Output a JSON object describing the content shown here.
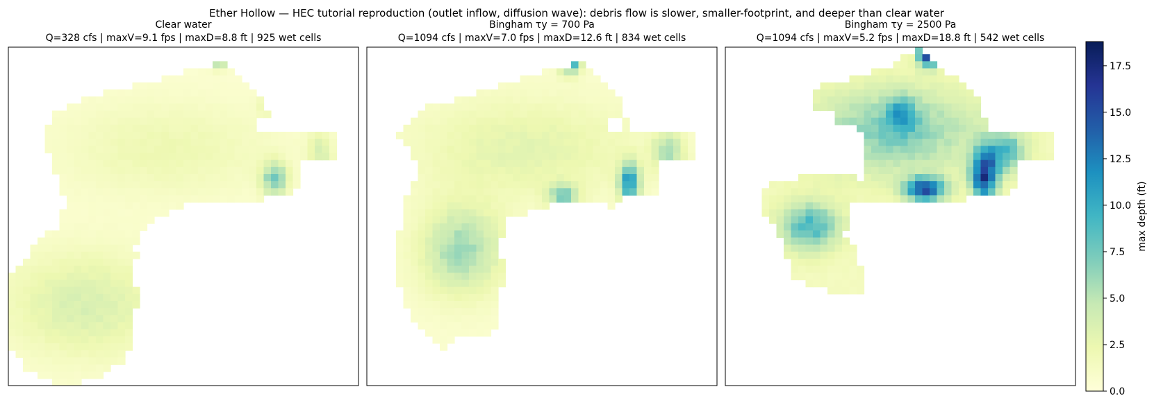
{
  "figure": {
    "title": "Ether Hollow — HEC tutorial reproduction (outlet inflow, diffusion wave): debris flow is slower, smaller-footprint, and deeper than clear water"
  },
  "chart_data": {
    "type": "heatmap",
    "colorbar": {
      "label": "max depth (ft)",
      "range": [
        0,
        18.8
      ],
      "ticks": [
        "0.0",
        "2.5",
        "5.0",
        "7.5",
        "10.0",
        "12.5",
        "15.0",
        "17.5"
      ],
      "tick_values": [
        0,
        2.5,
        5,
        7.5,
        10,
        12.5,
        15,
        17.5
      ],
      "colormap": "YlGnBu",
      "colors": [
        "#ffffd9",
        "#edf8b1",
        "#c7e9b4",
        "#7fcdbb",
        "#41b6c4",
        "#1d91c0",
        "#225ea8",
        "#253494",
        "#081d58"
      ]
    },
    "panels": [
      {
        "title": "Clear water",
        "subtitle": "Q=328 cfs  |  maxV=9.1 fps  |  maxD=8.8 ft  |  925 wet cells",
        "scenario": "clear",
        "max_depth_ft": 8.8
      },
      {
        "title": "Bingham  τy = 700 Pa",
        "subtitle": "Q=1094 cfs  |  maxV=7.0 fps  |  maxD=12.6 ft  |  834 wet cells",
        "scenario": "b700",
        "max_depth_ft": 12.6
      },
      {
        "title": "Bingham  τy = 2500 Pa",
        "subtitle": "Q=1094 cfs  |  maxV=5.2 fps  |  maxD=18.8 ft  |  542 wet cells",
        "scenario": "b2500",
        "max_depth_ft": 18.8
      }
    ]
  }
}
